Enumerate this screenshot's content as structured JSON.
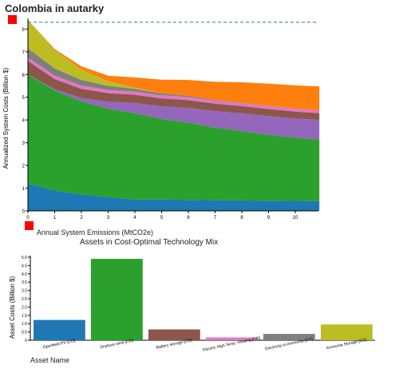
{
  "page": {
    "title": "Colombia in autarky"
  },
  "colors": {
    "blue": "#1f77b4",
    "green": "#2ca02c",
    "brown": "#8c564b",
    "pink": "#e377c2",
    "gray": "#7f7f7f",
    "olive": "#bcbd22",
    "purple": "#9467bd",
    "orange": "#ff7f0e",
    "handle": "#ff0000"
  },
  "chart_data": [
    {
      "type": "area",
      "stacked": true,
      "xlabel": "Annual System Emissions (MtCO2e)",
      "ylabel": "Annualized System Costs (Billion $)",
      "xlim": [
        0,
        11
      ],
      "ylim": [
        0,
        8.4
      ],
      "x_ticks": [
        "0",
        "1",
        "2",
        "3",
        "4",
        "5",
        "6",
        "7",
        "8",
        "9",
        "10"
      ],
      "y_ticks": [
        "0",
        "1",
        "2",
        "3",
        "4",
        "5",
        "6",
        "7",
        "8"
      ],
      "reference_line_y": 8.3,
      "x": [
        0,
        1,
        2,
        3,
        4,
        5,
        6,
        7,
        8,
        9,
        10,
        10.9
      ],
      "series": [
        {
          "color_key": "blue",
          "values": [
            1.2,
            0.9,
            0.72,
            0.6,
            0.5,
            0.5,
            0.48,
            0.47,
            0.46,
            0.45,
            0.44,
            0.43
          ]
        },
        {
          "color_key": "green",
          "values": [
            4.8,
            4.4,
            4.1,
            3.9,
            3.8,
            3.55,
            3.4,
            3.2,
            3.05,
            2.9,
            2.78,
            2.7
          ]
        },
        {
          "color_key": "purple",
          "values": [
            0.0,
            0.05,
            0.15,
            0.3,
            0.45,
            0.55,
            0.65,
            0.72,
            0.78,
            0.82,
            0.85,
            0.87
          ]
        },
        {
          "color_key": "brown",
          "values": [
            0.6,
            0.45,
            0.4,
            0.38,
            0.36,
            0.35,
            0.34,
            0.33,
            0.32,
            0.31,
            0.3,
            0.3
          ]
        },
        {
          "color_key": "pink",
          "values": [
            0.15,
            0.15,
            0.14,
            0.14,
            0.14,
            0.14,
            0.14,
            0.13,
            0.13,
            0.13,
            0.13,
            0.13
          ]
        },
        {
          "color_key": "gray",
          "values": [
            0.4,
            0.32,
            0.25,
            0.18,
            0.12,
            0.08,
            0.05,
            0.03,
            0.02,
            0.01,
            0.0,
            0.0
          ]
        },
        {
          "color_key": "olive",
          "values": [
            1.25,
            0.8,
            0.45,
            0.2,
            0.05,
            0.0,
            0.0,
            0.0,
            0.0,
            0.0,
            0.0,
            0.0
          ]
        },
        {
          "color_key": "orange",
          "values": [
            0.0,
            0.05,
            0.15,
            0.25,
            0.45,
            0.6,
            0.7,
            0.8,
            0.9,
            0.98,
            1.02,
            1.05
          ]
        }
      ]
    },
    {
      "type": "bar",
      "title": "Assets in Cost-Optimal Technology Mix",
      "xlabel": "Asset Name",
      "ylabel": "Asset Costs (Billion $)",
      "ylim": [
        0,
        5.0
      ],
      "y_ticks": [
        "0",
        "0.5",
        "1.0",
        "1.5",
        "2.0",
        "2.5",
        "3.0",
        "3.5",
        "4.0",
        "4.5",
        "5.0"
      ],
      "categories": [
        "Openfield PV [CO]",
        "Onshore wind [CO]",
        "Battery storage [CO]",
        "Electric High Temp. Heating [CO]",
        "Electricity to Ammonia [CO]",
        "Ammonia Storage [CO]"
      ],
      "values": [
        1.22,
        4.9,
        0.65,
        0.17,
        0.38,
        0.95
      ],
      "bar_color_keys": [
        "blue",
        "green",
        "brown",
        "pink",
        "gray",
        "olive"
      ]
    }
  ]
}
